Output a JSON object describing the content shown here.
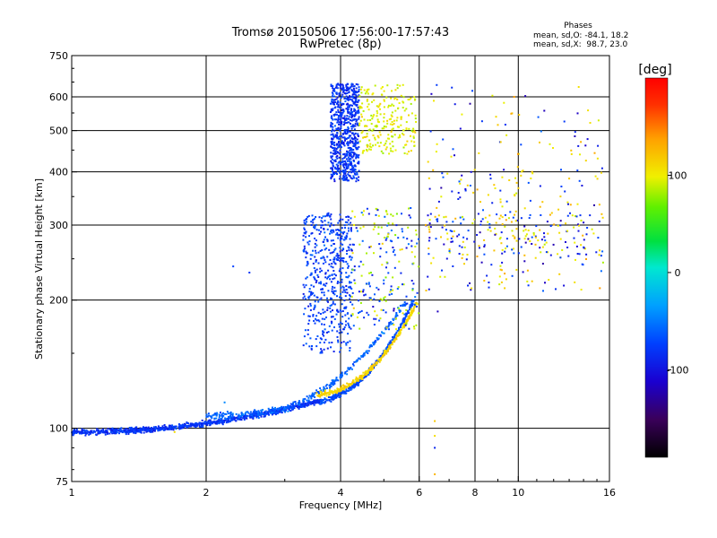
{
  "chart_data": {
    "type": "scatter",
    "title": "Tromsø 20150506 17:56:00-17:57:43",
    "subtitle": "RwPretec (8p)",
    "stats": {
      "heading": "Phases",
      "line_o": "mean, sd,O: -84.1, 18.2",
      "line_x": "mean, sd,X:  98.7, 23.0"
    },
    "xlabel": "Frequency [MHz]",
    "ylabel": "Stationary phase Virtual Height [km]",
    "x_scale": "log",
    "y_scale": "log",
    "xlim": [
      1,
      16
    ],
    "ylim": [
      75,
      750
    ],
    "x_ticks": [
      1,
      2,
      4,
      6,
      8,
      10,
      16
    ],
    "y_ticks": [
      75,
      100,
      200,
      300,
      400,
      500,
      600,
      750
    ],
    "x_gridlines": [
      2,
      4,
      6,
      8,
      10
    ],
    "y_gridlines": [
      100,
      200,
      300,
      400,
      500,
      600
    ],
    "colorbar": {
      "label": "[deg]",
      "min": -190,
      "max": 200,
      "ticks": [
        100,
        0,
        -100
      ]
    },
    "series": [
      {
        "f": [
          1.0,
          6.0
        ],
        "h": [
          98,
          190
        ],
        "phase": [
          -100,
          -85
        ],
        "kind": "o-trace"
      },
      {
        "f": [
          2.0,
          5.8
        ],
        "h": [
          108,
          195
        ],
        "phase": [
          -90,
          -60
        ],
        "kind": "o-trace-2"
      },
      {
        "f": [
          3.6,
          6.0
        ],
        "h": [
          120,
          200
        ],
        "phase": [
          100,
          130
        ],
        "kind": "x-trace"
      },
      {
        "f": [
          3.8,
          4.4
        ],
        "h": [
          380,
          640
        ],
        "phase": [
          -100,
          -70
        ],
        "kind": "f2-cluster"
      },
      {
        "f": [
          4.4,
          5.9
        ],
        "h": [
          440,
          640
        ],
        "phase": [
          80,
          130
        ],
        "kind": "f2-x-cluster"
      },
      {
        "f": [
          3.3,
          4.2
        ],
        "h": [
          150,
          320
        ],
        "phase": [
          -110,
          -60
        ],
        "kind": "f1-column"
      },
      {
        "f": [
          6.2,
          15.0
        ],
        "h": [
          200,
          630
        ],
        "phase": [
          -140,
          180
        ],
        "kind": "scatter-high"
      }
    ]
  }
}
